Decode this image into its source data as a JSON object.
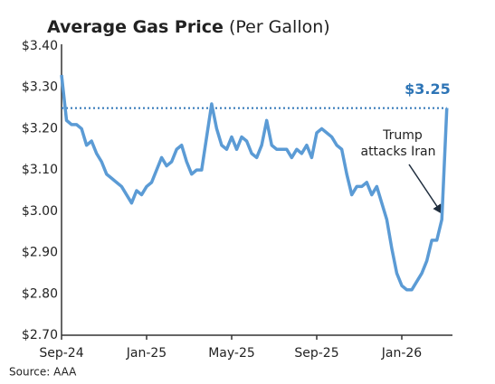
{
  "chart_data": {
    "type": "line",
    "title": "Average Gas Price",
    "subtitle": "(Per Gallon)",
    "source": "Source: AAA",
    "categories": [
      "Sep-24",
      null,
      null,
      null,
      null,
      null,
      null,
      null,
      null,
      null,
      null,
      null,
      null,
      null,
      null,
      null,
      null,
      "Jan-25",
      null,
      null,
      null,
      null,
      null,
      null,
      null,
      null,
      null,
      null,
      null,
      null,
      null,
      null,
      null,
      null,
      "May-25",
      null,
      null,
      null,
      null,
      null,
      null,
      null,
      null,
      null,
      null,
      null,
      null,
      null,
      null,
      null,
      null,
      "Sep-25",
      null,
      null,
      null,
      null,
      null,
      null,
      null,
      null,
      null,
      null,
      null,
      null,
      null,
      null,
      null,
      null,
      "Jan-26",
      null,
      null,
      null,
      null,
      null,
      null,
      null,
      null,
      null
    ],
    "series": [
      {
        "name": "Average Gas Price",
        "color": "#5b9bd5",
        "values": [
          3.33,
          3.22,
          3.21,
          3.21,
          3.2,
          3.16,
          3.17,
          3.14,
          3.12,
          3.09,
          3.08,
          3.07,
          3.06,
          3.04,
          3.02,
          3.05,
          3.04,
          3.06,
          3.07,
          3.1,
          3.13,
          3.11,
          3.12,
          3.15,
          3.16,
          3.12,
          3.09,
          3.1,
          3.1,
          3.18,
          3.26,
          3.2,
          3.16,
          3.15,
          3.18,
          3.15,
          3.18,
          3.17,
          3.14,
          3.13,
          3.16,
          3.22,
          3.16,
          3.15,
          3.15,
          3.15,
          3.13,
          3.15,
          3.14,
          3.16,
          3.13,
          3.19,
          3.2,
          3.19,
          3.18,
          3.16,
          3.15,
          3.09,
          3.04,
          3.06,
          3.06,
          3.07,
          3.04,
          3.06,
          3.02,
          2.98,
          2.91,
          2.85,
          2.82,
          2.81,
          2.81,
          2.83,
          2.85,
          2.88,
          2.93,
          2.93,
          2.98,
          3.25
        ]
      }
    ],
    "reference_line": {
      "value": 3.25,
      "label": "$3.25",
      "color": "#2e75b6"
    },
    "annotation": {
      "lines": [
        "Trump",
        "attacks Iran"
      ]
    },
    "ylim": [
      2.7,
      3.4
    ],
    "yticks": [
      {
        "value": 2.7,
        "label": "$2.70"
      },
      {
        "value": 2.8,
        "label": "$2.80"
      },
      {
        "value": 2.9,
        "label": "$2.90"
      },
      {
        "value": 3.0,
        "label": "$3.00"
      },
      {
        "value": 3.1,
        "label": "$3.10"
      },
      {
        "value": 3.2,
        "label": "$3.20"
      },
      {
        "value": 3.3,
        "label": "$3.30"
      },
      {
        "value": 3.4,
        "label": "$3.40"
      }
    ],
    "grid": false
  }
}
